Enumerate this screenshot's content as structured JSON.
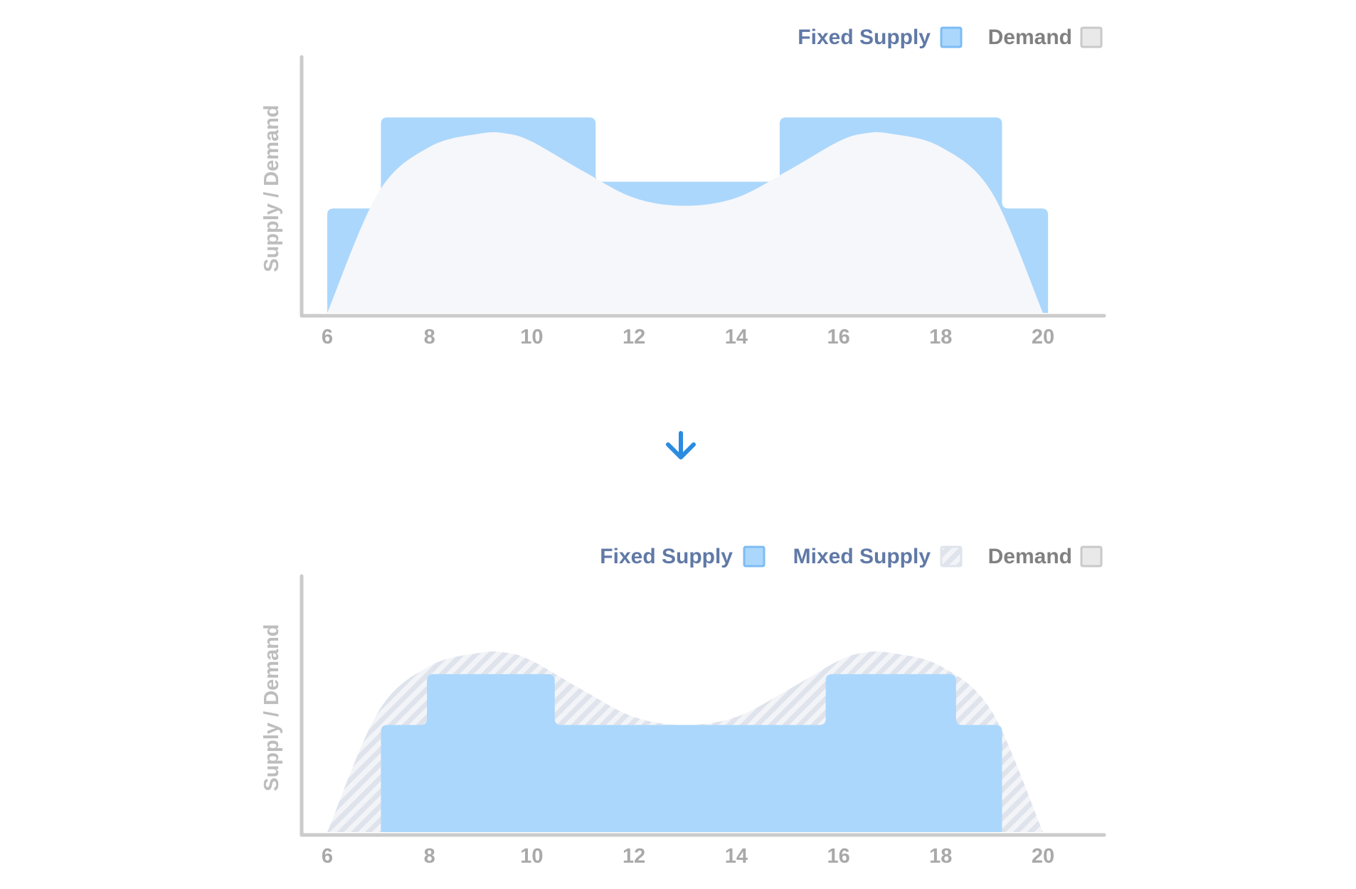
{
  "colors": {
    "fixed_fill": "#acd7fc",
    "fixed_stroke": "#7cbcf5",
    "demand_fill": "#f6f7fa",
    "demand_swatch_fill": "#e9e9e9",
    "demand_swatch_stroke": "#c9c9c9",
    "mixed_stripe": "#dfe3ec",
    "axis": "#cbcbcb",
    "tick_label": "#a9a9a9",
    "ylabel": "#bdbdbd",
    "legend_blue_text": "#6079a6",
    "legend_gray_text": "#808080",
    "arrow": "#2b8be0"
  },
  "arrow_icon": "arrow-down-icon",
  "chart_data": [
    {
      "type": "area",
      "title": "",
      "xlabel": "",
      "ylabel": "Supply / Demand",
      "xlim": [
        5.5,
        21.6
      ],
      "ylim": [
        0,
        1.02
      ],
      "x_ticks": [
        6,
        8,
        10,
        12,
        14,
        16,
        18,
        20
      ],
      "x_tick_labels": [
        "6",
        "8",
        "10",
        "12",
        "14",
        "16",
        "18",
        "20"
      ],
      "grid": false,
      "legend_position": "top-right",
      "legend": [
        "Fixed Supply",
        "Demand"
      ],
      "series": [
        {
          "name": "Fixed Supply",
          "kind": "step",
          "segments": [
            {
              "x0": 6.0,
              "x1": 7.05,
              "y": 0.39
            },
            {
              "x0": 7.05,
              "x1": 11.25,
              "y": 0.73
            },
            {
              "x0": 11.25,
              "x1": 14.85,
              "y": 0.49
            },
            {
              "x0": 14.85,
              "x1": 19.2,
              "y": 0.73
            },
            {
              "x0": 19.2,
              "x1": 20.1,
              "y": 0.39
            }
          ]
        },
        {
          "name": "Demand",
          "kind": "curve",
          "x": [
            6,
            7,
            8,
            9,
            9.5,
            10,
            11,
            12,
            13,
            14,
            15,
            16,
            16.5,
            17,
            18,
            19,
            20
          ],
          "y": [
            0.0,
            0.45,
            0.62,
            0.67,
            0.67,
            0.64,
            0.53,
            0.43,
            0.4,
            0.43,
            0.53,
            0.64,
            0.67,
            0.67,
            0.62,
            0.45,
            0.0
          ]
        }
      ]
    },
    {
      "type": "area",
      "title": "",
      "xlabel": "",
      "ylabel": "Supply / Demand",
      "xlim": [
        5.5,
        21.6
      ],
      "ylim": [
        0,
        1.02
      ],
      "x_ticks": [
        6,
        8,
        10,
        12,
        14,
        16,
        18,
        20
      ],
      "x_tick_labels": [
        "6",
        "8",
        "10",
        "12",
        "14",
        "16",
        "18",
        "20"
      ],
      "grid": false,
      "legend_position": "top-right",
      "legend": [
        "Fixed Supply",
        "Mixed Supply",
        "Demand"
      ],
      "series": [
        {
          "name": "Mixed Supply",
          "kind": "curve",
          "x": [
            6,
            7,
            8,
            9,
            9.5,
            10,
            11,
            12,
            13,
            14,
            15,
            16,
            16.5,
            17,
            18,
            19,
            20
          ],
          "y": [
            0.0,
            0.45,
            0.62,
            0.67,
            0.67,
            0.64,
            0.53,
            0.43,
            0.4,
            0.43,
            0.53,
            0.64,
            0.67,
            0.67,
            0.62,
            0.45,
            0.0
          ]
        },
        {
          "name": "Fixed Supply",
          "kind": "step",
          "segments": [
            {
              "x0": 7.05,
              "x1": 7.95,
              "y": 0.4
            },
            {
              "x0": 7.95,
              "x1": 10.45,
              "y": 0.59
            },
            {
              "x0": 10.45,
              "x1": 15.75,
              "y": 0.4
            },
            {
              "x0": 15.75,
              "x1": 18.3,
              "y": 0.59
            },
            {
              "x0": 18.3,
              "x1": 19.2,
              "y": 0.4
            }
          ]
        }
      ]
    }
  ]
}
